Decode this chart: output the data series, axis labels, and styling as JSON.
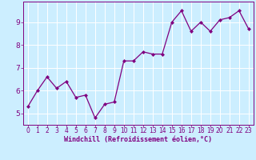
{
  "x": [
    0,
    1,
    2,
    3,
    4,
    5,
    6,
    7,
    8,
    9,
    10,
    11,
    12,
    13,
    14,
    15,
    16,
    17,
    18,
    19,
    20,
    21,
    22,
    23
  ],
  "y": [
    5.3,
    6.0,
    6.6,
    6.1,
    6.4,
    5.7,
    5.8,
    4.8,
    5.4,
    5.5,
    7.3,
    7.3,
    7.7,
    7.6,
    7.6,
    9.0,
    9.5,
    8.6,
    9.0,
    8.6,
    9.1,
    9.2,
    9.5,
    8.7
  ],
  "line_color": "#800080",
  "marker": "D",
  "marker_size": 2.0,
  "linewidth": 0.9,
  "bg_color": "#cceeff",
  "grid_color": "#ffffff",
  "xlabel": "Windchill (Refroidissement éolien,°C)",
  "xlabel_color": "#800080",
  "xlabel_fontsize": 6.0,
  "tick_color": "#800080",
  "tick_fontsize": 5.5,
  "ytick_fontsize": 6.5,
  "ylim": [
    4.5,
    9.9
  ],
  "xlim": [
    -0.5,
    23.5
  ],
  "yticks": [
    5,
    6,
    7,
    8,
    9
  ],
  "xticks": [
    0,
    1,
    2,
    3,
    4,
    5,
    6,
    7,
    8,
    9,
    10,
    11,
    12,
    13,
    14,
    15,
    16,
    17,
    18,
    19,
    20,
    21,
    22,
    23
  ]
}
